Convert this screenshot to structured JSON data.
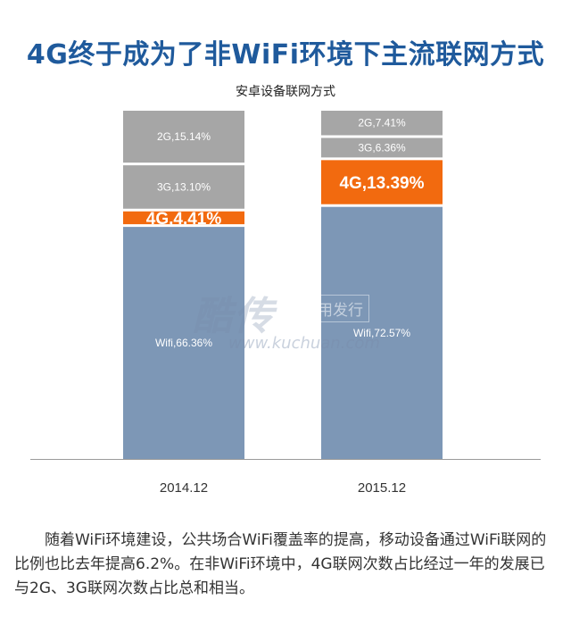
{
  "title": "4G终于成为了非WiFi环境下主流联网方式",
  "caption": "随着WiFi环境建设，公共场合WiFi覆盖率的提高，移动设备通过WiFi联网的比例也比去年提高6.2%。在非WiFi环境中，4G联网次数占比经过一年的发展已与2G、3G联网次数占比总和相当。",
  "watermark": {
    "logo": "酷传",
    "tag": "应用发行",
    "url": "www.kuchuan.com"
  },
  "colors": {
    "title": "#1f5a9c",
    "wifi": "#7d97b6",
    "g4": "#f26a0f",
    "g3": "#a6a6a6",
    "g2": "#a6a6a6"
  },
  "chart_data": {
    "type": "bar",
    "stacked": true,
    "normalized": true,
    "title": "安卓设备联网方式",
    "xlabel": "",
    "ylabel": "",
    "categories": [
      "2014.12",
      "2015.12"
    ],
    "series": [
      {
        "name": "Wifi",
        "values": [
          66.36,
          72.57
        ],
        "labels": [
          "Wifi,66.36%",
          "Wifi,72.57%"
        ]
      },
      {
        "name": "4G",
        "values": [
          4.41,
          13.39
        ],
        "labels": [
          "4G,4.41%",
          "4G,13.39%"
        ]
      },
      {
        "name": "3G",
        "values": [
          13.1,
          6.36
        ],
        "labels": [
          "3G,13.10%",
          "3G,6.36%"
        ]
      },
      {
        "name": "2G",
        "values": [
          15.14,
          7.41
        ],
        "labels": [
          "2G,15.14%",
          "2G,7.41%"
        ]
      }
    ]
  }
}
